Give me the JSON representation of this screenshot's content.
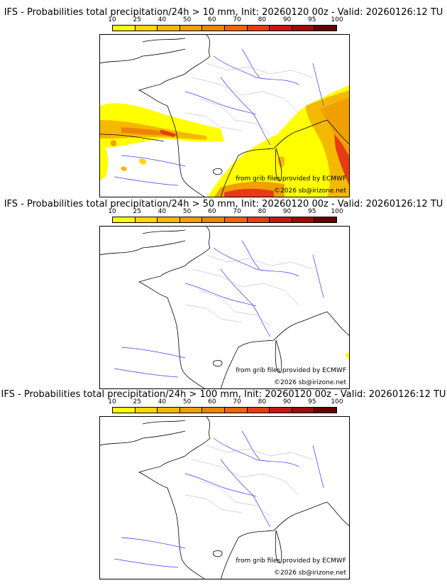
{
  "panels": [
    {
      "title": "IFS - Probabilities total precipitation/24h > 10 mm, Init: 20260120 00z - Valid: 20260126:12 TU",
      "threshold_mm": 10,
      "source": "from grib files provided by ECMWF",
      "copyright": "©2026 sb@irizone.net"
    },
    {
      "title": "IFS - Probabilities total precipitation/24h > 50 mm, Init: 20260120 00z - Valid: 20260126:12 TU",
      "threshold_mm": 50,
      "source": "from grib files provided by ECMWF",
      "copyright": "©2026 sb@irizone.net"
    },
    {
      "title": "IFS - Probabilities total precipitation/24h > 100 mm, Init: 20260120 00z - Valid: 20260126:12 TU",
      "threshold_mm": 100,
      "source": "from grib files provided by ECMWF",
      "copyright": "©2026 sb@irizone.net"
    }
  ],
  "legend": {
    "labels": [
      "10",
      "25",
      "40",
      "50",
      "60",
      "70",
      "80",
      "90",
      "95",
      "100"
    ],
    "colors": [
      "#ffff00",
      "#ffd700",
      "#f5b800",
      "#f0a000",
      "#ee8500",
      "#f06400",
      "#e63c14",
      "#c81414",
      "#a00a0a",
      "#640000"
    ]
  }
}
